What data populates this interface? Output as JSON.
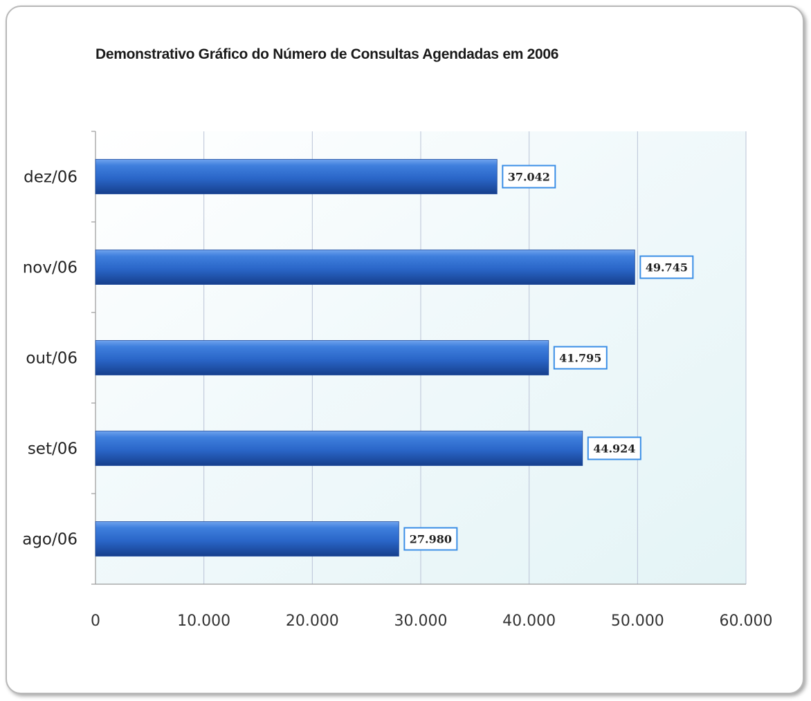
{
  "chart_data": {
    "type": "bar",
    "orientation": "horizontal",
    "title": "Demonstrativo Gráfico do Número de Consultas Agendadas em 2006",
    "categories": [
      "ago/06",
      "set/06",
      "out/06",
      "nov/06",
      "dez/06"
    ],
    "values": [
      27980,
      44924,
      41795,
      49745,
      37042
    ],
    "data_labels": [
      "27.980",
      "44.924",
      "41.795",
      "49.745",
      "37.042"
    ],
    "xlim": [
      0,
      60000
    ],
    "x_ticks": [
      0,
      10000,
      20000,
      30000,
      40000,
      50000,
      60000
    ],
    "x_tick_labels": [
      "0",
      "10.000",
      "20.000",
      "30.000",
      "40.000",
      "50.000",
      "60.000"
    ],
    "grid": true,
    "legend": "none",
    "bar_color": "#2f6fd0",
    "label_border_color": "#3a8ee6"
  }
}
